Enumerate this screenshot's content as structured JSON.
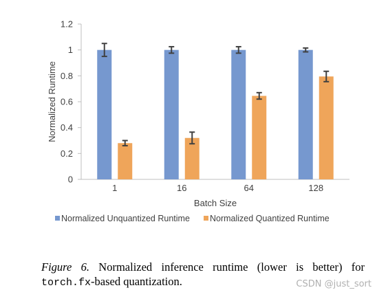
{
  "chart_data": {
    "type": "bar",
    "categories": [
      "1",
      "16",
      "64",
      "128"
    ],
    "series": [
      {
        "name": "Normalized Unquantized Runtime",
        "color": "#7698CF",
        "values": [
          1.0,
          1.0,
          1.0,
          1.0
        ],
        "errors": [
          0.05,
          0.025,
          0.025,
          0.015
        ]
      },
      {
        "name": "Normalized Quantized Runtime",
        "color": "#EFA55A",
        "values": [
          0.28,
          0.32,
          0.645,
          0.795
        ],
        "errors": [
          0.02,
          0.045,
          0.025,
          0.04
        ]
      }
    ],
    "xlabel": "Batch Size",
    "ylabel": "Normalized Runtime",
    "ylim": [
      0,
      1.2
    ],
    "yticks": [
      "0",
      "0.2",
      "0.4",
      "0.6",
      "0.8",
      "1",
      "1.2"
    ],
    "grid": false,
    "legend_position": "bottom"
  },
  "caption": {
    "figure_label": "Figure 6.",
    "text_1": "Normalized inference runtime (lower is better) for",
    "code": "torch.fx",
    "text_2": "-based quantization."
  },
  "watermark": "CSDN @just_sort"
}
